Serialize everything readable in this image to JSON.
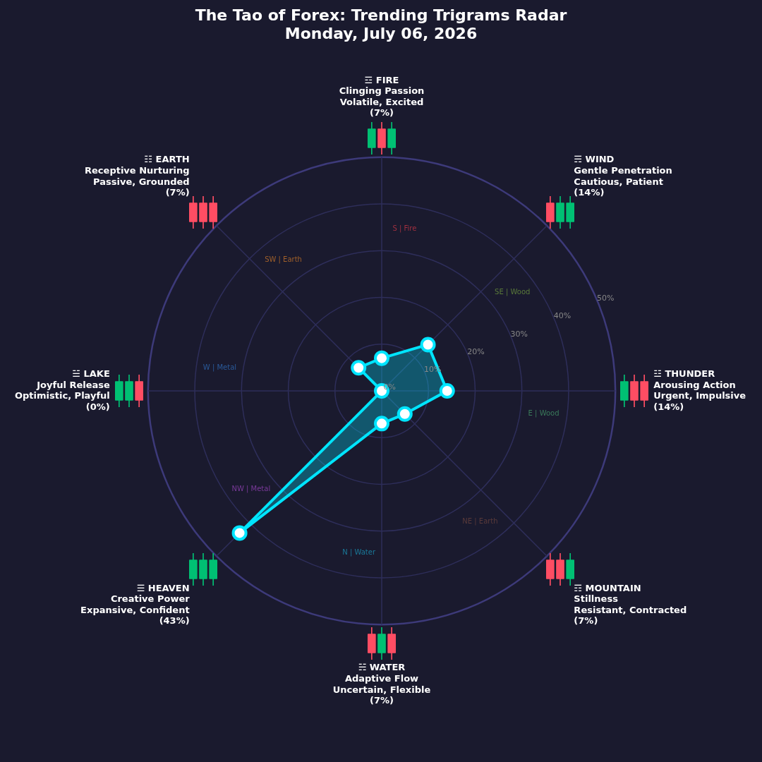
{
  "chart_data": {
    "type": "radar",
    "title": "The Tao of Forex: Trending Trigrams Radar",
    "subtitle": "Monday, July 06, 2026",
    "categories": [
      "☲ FIRE\nClinging Passion\nVolatile, Excited\n(7%)",
      "☴ WIND\nGentle Penetration\nCautious, Patient\n(14%)",
      "☳ THUNDER\nArousing Action\nUrgent, Impulsive\n(14%)",
      "☶ MOUNTAIN\nStillness\nResistant, Contracted\n(7%)",
      "☵ WATER\nAdaptive Flow\nUncertain, Flexible\n(7%)",
      "☰ HEAVEN\nCreative Power\nExpansive, Confident\n(43%)",
      "☱ LAKE\nJoyful Release\nOptimistic, Playful\n(0%)",
      "☷ EARTH\nReceptive Nurturing\nPassive, Grounded\n(7%)"
    ],
    "series": [
      {
        "color": "#00e5ff",
        "values": [
          7,
          14,
          14,
          7,
          7,
          43,
          0,
          7
        ]
      }
    ],
    "ylim": [
      0,
      50
    ],
    "yticks": [
      {
        "value": 0,
        "label": "0%"
      },
      {
        "value": 10,
        "label": "10%"
      },
      {
        "value": 20,
        "label": "20%"
      },
      {
        "value": 30,
        "label": "30%"
      },
      {
        "value": 40,
        "label": "40%"
      },
      {
        "value": 50,
        "label": "50%"
      }
    ],
    "grid": true,
    "marker": "circle",
    "annotations": [
      "S | Fire",
      "SE | Wood",
      "E | Wood",
      "NE | Earth",
      "N | Water",
      "NW | Metal",
      "W | Metal",
      "SW | Earth"
    ]
  }
}
